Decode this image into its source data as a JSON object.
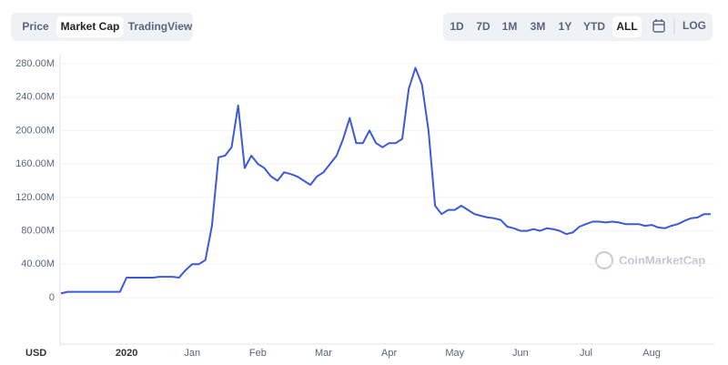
{
  "tabs": [
    "Price",
    "Market Cap",
    "TradingView"
  ],
  "active_tab": 1,
  "ranges": [
    "1D",
    "7D",
    "1M",
    "3M",
    "1Y",
    "YTD",
    "ALL"
  ],
  "active_range": 6,
  "log_label": "LOG",
  "watermark": "CoinMarketCap",
  "currency": "USD",
  "chart_data": {
    "type": "line",
    "categories": [
      null,
      null,
      null,
      null,
      null,
      null,
      null,
      null,
      null,
      null,
      "2020",
      null,
      null,
      null,
      null,
      null,
      null,
      null,
      null,
      null,
      "Jan",
      null,
      null,
      null,
      null,
      null,
      null,
      null,
      null,
      null,
      "Feb",
      null,
      null,
      null,
      null,
      null,
      null,
      null,
      null,
      null,
      "Mar",
      null,
      null,
      null,
      null,
      null,
      null,
      null,
      null,
      null,
      "Apr",
      null,
      null,
      null,
      null,
      null,
      null,
      null,
      null,
      null,
      "May",
      null,
      null,
      null,
      null,
      null,
      null,
      null,
      null,
      null,
      "Jun",
      null,
      null,
      null,
      null,
      null,
      null,
      null,
      null,
      null,
      "Jul",
      null,
      null,
      null,
      null,
      null,
      null,
      null,
      null,
      null,
      "Aug",
      null,
      null,
      null,
      null,
      null,
      null,
      null,
      null,
      null
    ],
    "series": [
      {
        "color": "#3c5ad8",
        "values": [
          5000000,
          7000000,
          7000000,
          7000000,
          7000000,
          7000000,
          7000000,
          7000000,
          7000000,
          7000000,
          24000000,
          24000000,
          24000000,
          24000000,
          24000000,
          25000000,
          25000000,
          25000000,
          24000000,
          33000000,
          40000000,
          40000000,
          45000000,
          86000000,
          168000000,
          170000000,
          180000000,
          230000000,
          155000000,
          170000000,
          160000000,
          155000000,
          145000000,
          140000000,
          150000000,
          148000000,
          145000000,
          140000000,
          135000000,
          145000000,
          150000000,
          160000000,
          170000000,
          190000000,
          215000000,
          185000000,
          185000000,
          200000000,
          185000000,
          180000000,
          185000000,
          185000000,
          190000000,
          250000000,
          275000000,
          255000000,
          200000000,
          110000000,
          100000000,
          105000000,
          105000000,
          110000000,
          105000000,
          100000000,
          98000000,
          96000000,
          95000000,
          93000000,
          85000000,
          83000000,
          80000000,
          80000000,
          82000000,
          80000000,
          83000000,
          82000000,
          80000000,
          76000000,
          78000000,
          85000000,
          88000000,
          91000000,
          91000000,
          90000000,
          91000000,
          90000000,
          88000000,
          88000000,
          88000000,
          86000000,
          87000000,
          84000000,
          83000000,
          86000000,
          88000000,
          92000000,
          95000000,
          96000000,
          100000000,
          100000000
        ]
      }
    ],
    "ylim": [
      0,
      280000000
    ],
    "yticks": [
      0,
      {
        "value": 40000000,
        "label": "40.00M"
      },
      {
        "value": 80000000,
        "label": "80.00M"
      },
      {
        "value": 120000000,
        "label": "120.00M"
      },
      {
        "value": 160000000,
        "label": "160.00M"
      },
      {
        "value": 200000000,
        "label": "200.00M"
      },
      {
        "value": 240000000,
        "label": "240.00M"
      },
      {
        "value": 280000000,
        "label": "280.00M"
      }
    ],
    "grid": true
  }
}
